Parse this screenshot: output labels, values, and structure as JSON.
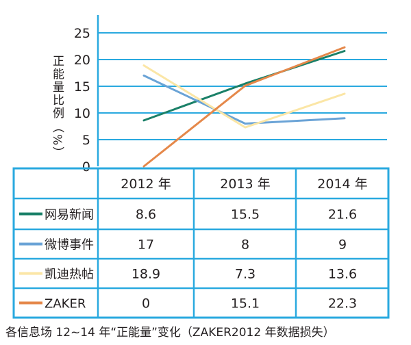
{
  "chart_data": {
    "type": "line",
    "categories": [
      "2012 年",
      "2013 年",
      "2014 年"
    ],
    "ylabel": "正能量比例",
    "yunit": "（%）",
    "ylim": [
      0,
      25
    ],
    "yticks": [
      0,
      5,
      10,
      15,
      20,
      25
    ],
    "grid": true,
    "legend_placement": "table-left",
    "series": [
      {
        "name": "网易新闻",
        "color": "#1a8068",
        "values": [
          8.6,
          15.5,
          21.6
        ]
      },
      {
        "name": "微博事件",
        "color": "#6aa3d6",
        "values": [
          17,
          8,
          9
        ]
      },
      {
        "name": "凯迪热帖",
        "color": "#fbe6a6",
        "values": [
          18.9,
          7.3,
          13.6
        ]
      },
      {
        "name": "ZAKER",
        "color": "#e5884a",
        "values": [
          0,
          15.1,
          22.3
        ]
      }
    ],
    "table": [
      [
        "8.6",
        "15.5",
        "21.6"
      ],
      [
        "17",
        "8",
        "9"
      ],
      [
        "18.9",
        "7.3",
        "13.6"
      ],
      [
        "0",
        "15.1",
        "22.3"
      ]
    ]
  },
  "caption": "各信息场 12~14 年“正能量”变化（ZAKER2012 年数据损失）",
  "colors": {
    "frame": "#29a9df",
    "text": "#231f20"
  }
}
